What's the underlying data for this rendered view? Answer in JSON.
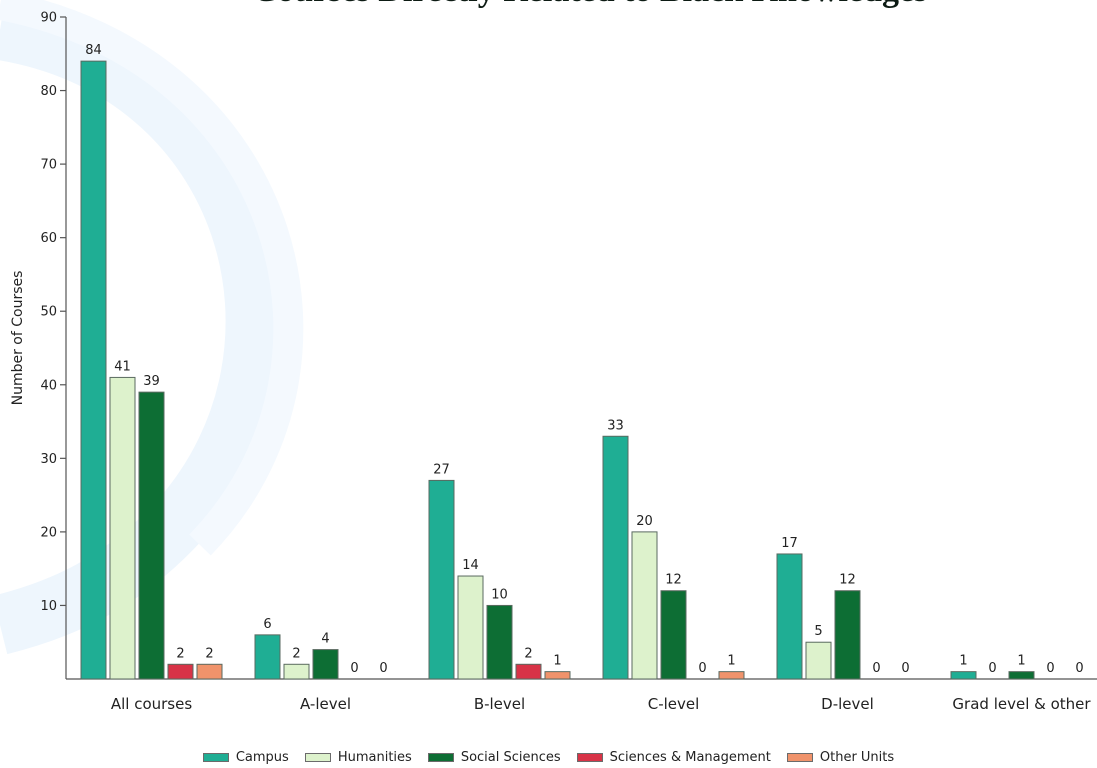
{
  "chart_data": {
    "type": "bar",
    "title": "Courses Directly Related to Black Knowledges",
    "ylabel": "Number of Courses",
    "xlabel": "",
    "ylim": [
      0,
      90
    ],
    "yticks": [
      10,
      20,
      30,
      40,
      50,
      60,
      70,
      80,
      90
    ],
    "categories": [
      "All courses",
      "A-level",
      "B-level",
      "C-level",
      "D-level",
      "Grad level & other"
    ],
    "series": [
      {
        "name": "Campus",
        "color": "#1fae94",
        "values": [
          84,
          6,
          27,
          33,
          17,
          1
        ]
      },
      {
        "name": "Humanities",
        "color": "#ddf2cc",
        "values": [
          41,
          2,
          14,
          20,
          5,
          0
        ]
      },
      {
        "name": "Social Sciences",
        "color": "#0d6e34",
        "values": [
          39,
          4,
          10,
          12,
          12,
          1
        ]
      },
      {
        "name": "Sciences & Management",
        "color": "#d83347",
        "values": [
          2,
          0,
          2,
          0,
          0,
          0
        ]
      },
      {
        "name": "Other Units",
        "color": "#f0936b",
        "values": [
          2,
          0,
          1,
          1,
          0,
          0
        ]
      }
    ],
    "legend_position": "bottom",
    "grid": false
  }
}
